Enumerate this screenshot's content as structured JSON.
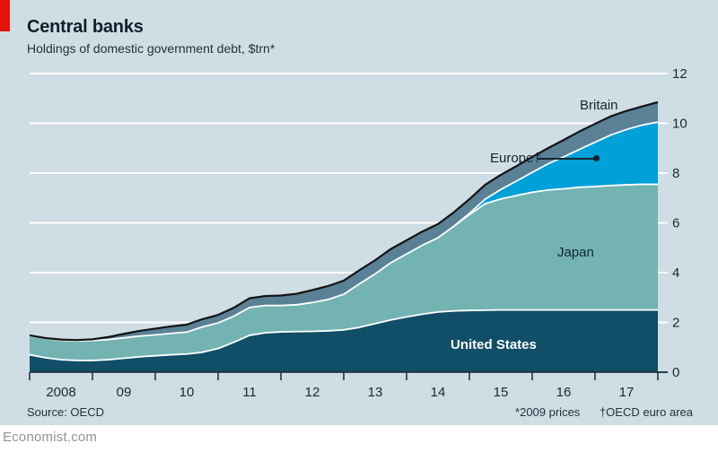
{
  "footer": {
    "source": "Source: OECD",
    "footnote_prices": "*2009 prices",
    "footnote_area": "†OECD euro area",
    "brand": "Economist.com"
  },
  "colors": {
    "background": "#cfdde5",
    "red_tab": "#e3120b",
    "united_states": "#114e68",
    "japan": "#73b4b3",
    "europe": "#00a0d8",
    "britain": "#5a8196",
    "total_line": "#131313",
    "separator_line": "#ffffff",
    "grid": "#ffffff",
    "axis": "#1b2a32",
    "brand_text": "#949494"
  },
  "chart_data": {
    "type": "area",
    "stacked": true,
    "title": "Central banks",
    "subtitle": "Holdings of domestic government debt, $trn*",
    "xlabel": "",
    "ylabel": "$trn",
    "ylim": [
      0,
      12
    ],
    "grid": "horizontal-white",
    "gridlines": [
      2,
      4,
      6,
      8,
      10,
      12
    ],
    "yticks": [
      0,
      2,
      4,
      6,
      8,
      10,
      12
    ],
    "ytick_labels": [
      "0",
      "2",
      "4",
      "6",
      "8",
      "10",
      "12"
    ],
    "y_axis_side": "right",
    "xticks": [
      2008,
      2009,
      2010,
      2011,
      2012,
      2013,
      2014,
      2015,
      2016,
      2017,
      2018
    ],
    "xtick_labels": [
      "2008",
      "09",
      "10",
      "11",
      "12",
      "13",
      "14",
      "15",
      "16",
      "17"
    ],
    "legend_position": "inline-labels",
    "labels": {
      "united_states": "United States",
      "japan": "Japan",
      "europe": "Europe†",
      "britain": "Britain"
    },
    "x": [
      2008,
      2008.25,
      2008.5,
      2008.75,
      2009,
      2009.25,
      2009.5,
      2009.75,
      2010,
      2010.25,
      2010.5,
      2010.75,
      2011,
      2011.25,
      2011.5,
      2011.75,
      2012,
      2012.25,
      2012.5,
      2012.75,
      2013,
      2013.25,
      2013.5,
      2013.75,
      2014,
      2014.25,
      2014.5,
      2014.75,
      2015,
      2015.25,
      2015.5,
      2015.75,
      2016,
      2016.25,
      2016.5,
      2016.75,
      2017,
      2017.25,
      2017.5,
      2017.75,
      2018
    ],
    "series": [
      {
        "name": "United States",
        "color_key": "united_states",
        "values": [
          0.7,
          0.58,
          0.5,
          0.47,
          0.47,
          0.5,
          0.56,
          0.62,
          0.66,
          0.7,
          0.73,
          0.8,
          0.95,
          1.2,
          1.48,
          1.58,
          1.62,
          1.63,
          1.64,
          1.66,
          1.7,
          1.8,
          1.95,
          2.1,
          2.22,
          2.33,
          2.42,
          2.46,
          2.48,
          2.49,
          2.5,
          2.5,
          2.5,
          2.5,
          2.5,
          2.5,
          2.5,
          2.5,
          2.5,
          2.5,
          2.5
        ]
      },
      {
        "name": "Japan",
        "color_key": "japan",
        "values": [
          0.76,
          0.77,
          0.78,
          0.79,
          0.8,
          0.81,
          0.82,
          0.83,
          0.84,
          0.86,
          0.88,
          1.02,
          1.03,
          1.05,
          1.12,
          1.1,
          1.06,
          1.08,
          1.16,
          1.26,
          1.43,
          1.75,
          2.0,
          2.3,
          2.53,
          2.77,
          2.98,
          3.4,
          3.85,
          4.28,
          4.46,
          4.6,
          4.73,
          4.82,
          4.87,
          4.93,
          4.96,
          5.0,
          5.03,
          5.05,
          5.05
        ]
      },
      {
        "name": "Europe†",
        "color_key": "europe",
        "values": [
          0,
          0,
          0,
          0,
          0,
          0,
          0,
          0,
          0,
          0,
          0,
          0,
          0,
          0,
          0,
          0,
          0,
          0,
          0,
          0,
          0,
          0,
          0,
          0,
          0,
          0,
          0,
          0,
          0.05,
          0.18,
          0.38,
          0.58,
          0.8,
          1.05,
          1.28,
          1.52,
          1.78,
          2.03,
          2.22,
          2.38,
          2.5
        ]
      },
      {
        "name": "Britain",
        "color_key": "britain",
        "values": [
          0.02,
          0.02,
          0.03,
          0.03,
          0.05,
          0.1,
          0.16,
          0.21,
          0.25,
          0.28,
          0.3,
          0.31,
          0.32,
          0.34,
          0.37,
          0.38,
          0.4,
          0.44,
          0.5,
          0.54,
          0.55,
          0.55,
          0.55,
          0.55,
          0.55,
          0.55,
          0.55,
          0.56,
          0.57,
          0.58,
          0.59,
          0.6,
          0.62,
          0.63,
          0.68,
          0.72,
          0.74,
          0.75,
          0.75,
          0.75,
          0.8
        ]
      }
    ]
  }
}
